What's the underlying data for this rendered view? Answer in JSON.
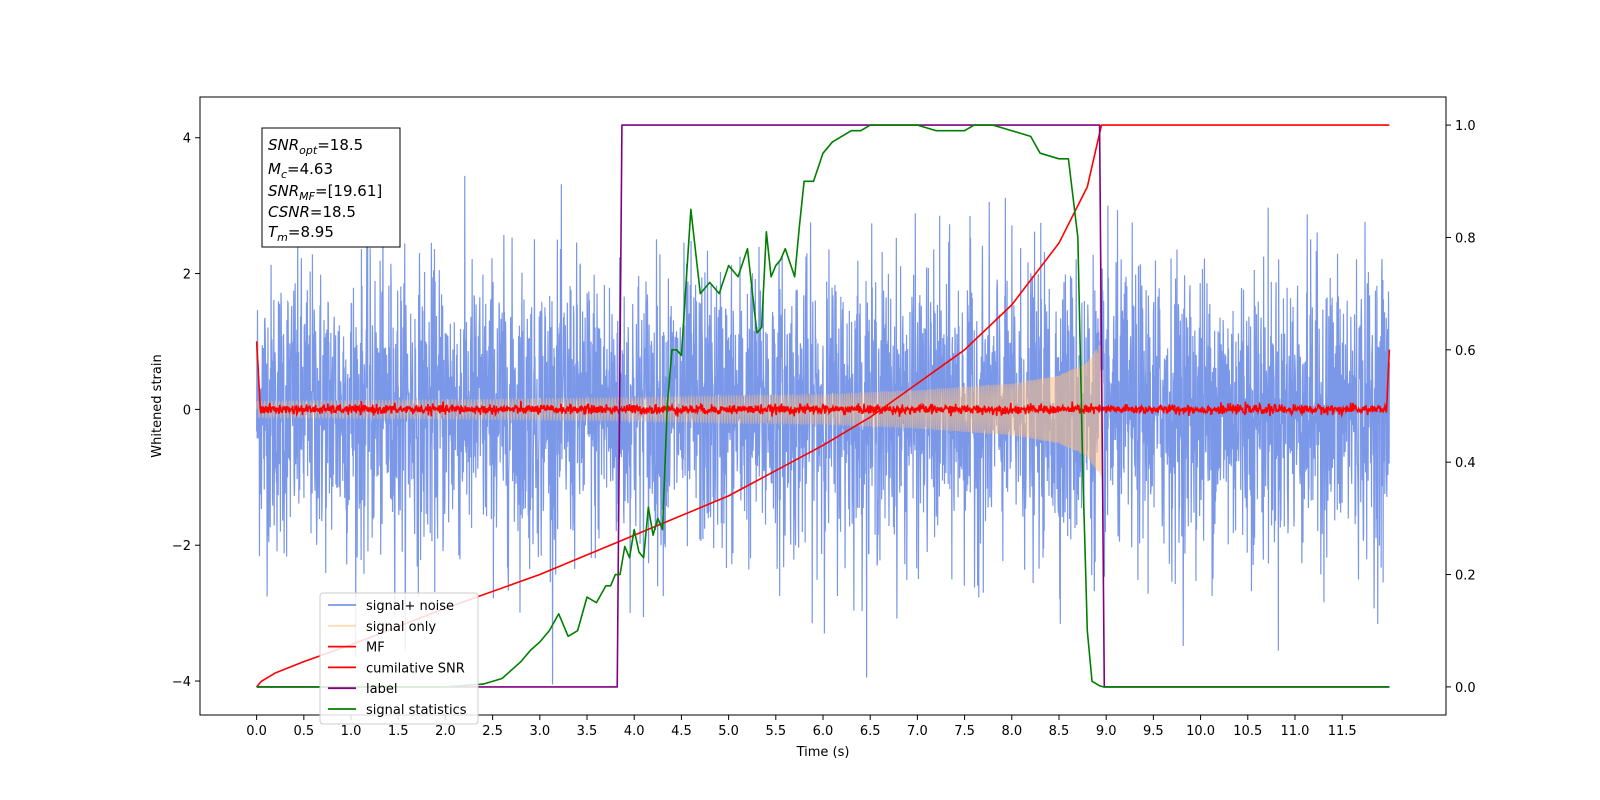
{
  "chart_data": {
    "type": "line",
    "xlabel": "Time (s)",
    "ylabel_left": "Whitened strain",
    "xlim": [
      -0.6,
      12.6
    ],
    "ylim_left": [
      -4.5,
      4.6
    ],
    "ylim_right": [
      -0.05,
      1.05
    ],
    "x_ticks": [
      0.0,
      0.5,
      1.0,
      1.5,
      2.0,
      2.5,
      3.0,
      3.5,
      4.0,
      4.5,
      5.0,
      5.5,
      6.0,
      6.5,
      7.0,
      7.5,
      8.0,
      8.5,
      9.0,
      9.5,
      10.0,
      10.5,
      11.0,
      11.5
    ],
    "x_tick_labels": [
      "0.0",
      "0.5",
      "1.0",
      "1.5",
      "2.0",
      "2.5",
      "3.0",
      "3.5",
      "4.0",
      "4.5",
      "5.0",
      "5.5",
      "6.0",
      "6.5",
      "7.0",
      "7.5",
      "8.0",
      "8.5",
      "9.0",
      "9.5",
      "10.0",
      "10.5",
      "11.0",
      "11.5"
    ],
    "y_left_ticks": [
      -4,
      -2,
      0,
      2,
      4
    ],
    "y_left_tick_labels": [
      "−4",
      "−2",
      "0",
      "2",
      "4"
    ],
    "y_right_ticks": [
      0.0,
      0.2,
      0.4,
      0.6,
      0.8,
      1.0
    ],
    "y_right_tick_labels": [
      "0.0",
      "0.2",
      "0.4",
      "0.6",
      "0.8",
      "1.0"
    ],
    "legend_position": "lower-left",
    "info_box": {
      "snr_opt": {
        "base": "SNR",
        "sub": "opt",
        "value": "=18.5"
      },
      "mc": {
        "base": "M",
        "sub": "c",
        "value": "=4.63"
      },
      "snr_mf": {
        "base": "SNR",
        "sub": "MF",
        "value": "=[19.61]"
      },
      "csnr": {
        "base": "CSNR",
        "sub": "",
        "value": "=18.5"
      },
      "tm": {
        "base": "T",
        "sub": "m",
        "value": "=8.95"
      }
    },
    "series": [
      {
        "name": "signal+ noise",
        "color": "#6b8ce6",
        "axis": "left",
        "description_values": {
          "x_range": [
            0.0,
            12.0
          ],
          "amplitude_range": [
            -4.05,
            4.15
          ]
        }
      },
      {
        "name": "signal only",
        "color": "#ffbf80",
        "axis": "left",
        "envelope": {
          "x": [
            0.0,
            2.0,
            4.0,
            6.0,
            7.0,
            8.0,
            8.5,
            8.8,
            8.95
          ],
          "amp": [
            0.12,
            0.14,
            0.17,
            0.22,
            0.28,
            0.38,
            0.5,
            0.7,
            1.0
          ]
        }
      },
      {
        "name": "MF",
        "color": "#ff0000",
        "axis": "left",
        "description_values": {
          "start": 1.0,
          "end": 0.88,
          "baseline": 0.0
        }
      },
      {
        "name": "cumilative SNR",
        "color": "#ff0000",
        "axis": "right",
        "x": [
          0.0,
          0.05,
          0.2,
          0.5,
          1.0,
          2.0,
          3.0,
          4.0,
          5.0,
          6.0,
          6.5,
          7.0,
          7.5,
          8.0,
          8.5,
          8.8,
          8.95,
          9.0,
          12.0
        ],
        "y": [
          0.0,
          0.01,
          0.025,
          0.045,
          0.075,
          0.14,
          0.2,
          0.27,
          0.34,
          0.43,
          0.48,
          0.54,
          0.6,
          0.68,
          0.79,
          0.89,
          1.0,
          1.0,
          1.0
        ]
      },
      {
        "name": "label",
        "color": "#800080",
        "axis": "right",
        "x": [
          0.0,
          3.82,
          3.87,
          8.93,
          8.98,
          12.0
        ],
        "y": [
          0.0,
          0.0,
          1.0,
          1.0,
          0.0,
          0.0
        ]
      },
      {
        "name": "signal statistics",
        "color": "#008000",
        "axis": "right",
        "x": [
          0.0,
          1.0,
          2.0,
          2.4,
          2.6,
          2.7,
          2.8,
          2.9,
          3.0,
          3.1,
          3.2,
          3.3,
          3.4,
          3.5,
          3.6,
          3.7,
          3.75,
          3.8,
          3.85,
          3.9,
          3.95,
          4.0,
          4.05,
          4.1,
          4.15,
          4.2,
          4.25,
          4.3,
          4.35,
          4.4,
          4.45,
          4.5,
          4.6,
          4.7,
          4.8,
          4.9,
          5.0,
          5.1,
          5.2,
          5.3,
          5.35,
          5.4,
          5.45,
          5.5,
          5.55,
          5.6,
          5.7,
          5.75,
          5.8,
          5.9,
          6.0,
          6.1,
          6.2,
          6.3,
          6.4,
          6.5,
          6.7,
          6.8,
          6.9,
          7.0,
          7.2,
          7.5,
          7.6,
          7.8,
          8.0,
          8.2,
          8.3,
          8.5,
          8.6,
          8.7,
          8.75,
          8.8,
          8.85,
          8.9,
          8.93,
          8.97,
          9.0,
          9.05,
          9.1,
          9.2,
          12.0
        ],
        "y": [
          0.0,
          0.0,
          0.0,
          0.005,
          0.015,
          0.03,
          0.045,
          0.065,
          0.08,
          0.1,
          0.13,
          0.09,
          0.1,
          0.16,
          0.15,
          0.18,
          0.18,
          0.2,
          0.2,
          0.25,
          0.23,
          0.28,
          0.24,
          0.23,
          0.32,
          0.27,
          0.3,
          0.28,
          0.5,
          0.6,
          0.6,
          0.59,
          0.85,
          0.7,
          0.72,
          0.7,
          0.75,
          0.73,
          0.78,
          0.63,
          0.64,
          0.81,
          0.73,
          0.75,
          0.76,
          0.78,
          0.73,
          0.82,
          0.9,
          0.9,
          0.95,
          0.97,
          0.98,
          0.99,
          0.99,
          1.0,
          1.0,
          1.0,
          1.0,
          1.0,
          0.99,
          0.99,
          1.0,
          1.0,
          0.99,
          0.98,
          0.95,
          0.94,
          0.94,
          0.8,
          0.4,
          0.1,
          0.01,
          0.005,
          0.002,
          0.0,
          0.0,
          0.0,
          0.0,
          0.0,
          0.0
        ]
      }
    ]
  }
}
